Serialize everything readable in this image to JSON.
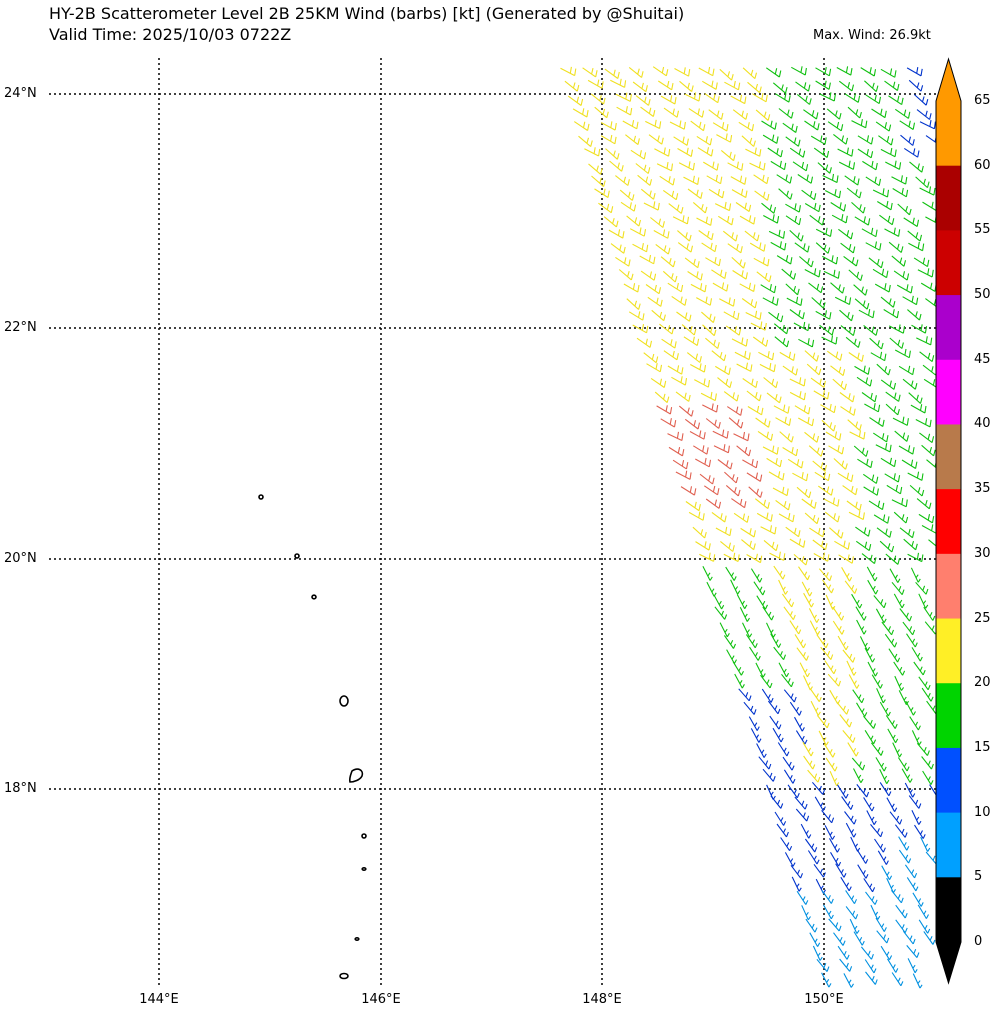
{
  "title_line1": "HY-2B Scatterometer Level 2B 25KM Wind (barbs) [kt] (Generated by @Shuitai)",
  "title_line2": "Valid Time: 2025/10/03 0722Z",
  "max_wind": "Max. Wind: 26.9kt",
  "lat_labels": [
    "24°N",
    "22°N",
    "20°N",
    "18°N"
  ],
  "lon_labels": [
    "144°E",
    "146°E",
    "148°E",
    "150°E"
  ],
  "colorbar": {
    "labels": [
      "65",
      "60",
      "55",
      "50",
      "45",
      "40",
      "35",
      "30",
      "25",
      "20",
      "15",
      "10",
      "5",
      "0"
    ],
    "colors": [
      "#ff9900",
      "#aa0000",
      "#cc0000",
      "#aa00cc",
      "#ff00ff",
      "#b87a4b",
      "#ff0000",
      "#ff7f6e",
      "#ffef26",
      "#00d400",
      "#0050ff",
      "#00a0ff",
      "#000000"
    ]
  }
}
